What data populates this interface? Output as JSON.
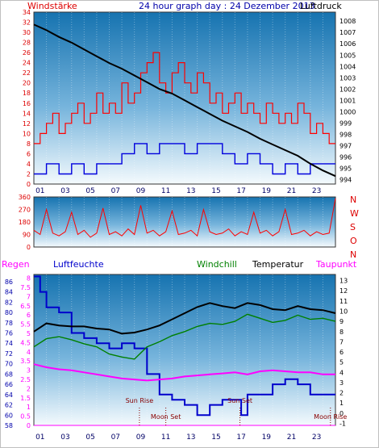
{
  "colors": {
    "plot_top": "#1673b0",
    "plot_mid": "#76b4dc",
    "plot_bottom": "#f4fafd",
    "wind": "#ff0000",
    "gust": "#0000dd",
    "pressure": "#000000",
    "direction": "#ff0000",
    "regen": "#ff00ff",
    "luftfeuchte": "#0000cc",
    "windchill": "#008000",
    "temperatur": "#000000",
    "taupunkt": "#ff00ff",
    "axis_red": "#dd0000",
    "axis_blue": "#0000aa",
    "sun_moon": "#880000"
  },
  "header": {
    "title": "24 hour graph day : 24 Dezember 2013",
    "left_label": "Windstärke",
    "right_label": "Luftdruck"
  },
  "x_ticks": [
    "01",
    "03",
    "05",
    "07",
    "09",
    "11",
    "13",
    "15",
    "17",
    "19",
    "21",
    "23"
  ],
  "chart_data": [
    {
      "type": "line",
      "panel": "wind-pressure",
      "x_range_hours": [
        0,
        24
      ],
      "left_axis": {
        "label": "Windstärke",
        "ticks": [
          0,
          2,
          4,
          6,
          8,
          10,
          12,
          14,
          16,
          18,
          20,
          22,
          24,
          26,
          28,
          30,
          32,
          34
        ],
        "ylim": [
          0,
          34
        ]
      },
      "right_axis": {
        "label": "Luftdruck",
        "ticks": [
          994,
          995,
          996,
          997,
          998,
          999,
          1000,
          1001,
          1002,
          1003,
          1004,
          1005,
          1006,
          1007,
          1008
        ],
        "ylim": [
          993.6,
          1008.8
        ]
      },
      "series": [
        {
          "name": "Windstärke",
          "axis": "left",
          "style": "step",
          "x": [
            0,
            0.5,
            1,
            1.5,
            2,
            2.5,
            3,
            3.5,
            4,
            4.5,
            5,
            5.5,
            6,
            6.5,
            7,
            7.5,
            8,
            8.5,
            9,
            9.5,
            10,
            10.5,
            11,
            11.5,
            12,
            12.5,
            13,
            13.5,
            14,
            14.5,
            15,
            15.5,
            16,
            16.5,
            17,
            17.5,
            18,
            18.5,
            19,
            19.5,
            20,
            20.5,
            21,
            21.5,
            22,
            22.5,
            23,
            23.5,
            24
          ],
          "values": [
            8,
            10,
            12,
            14,
            10,
            12,
            14,
            16,
            12,
            14,
            18,
            14,
            16,
            14,
            20,
            16,
            18,
            22,
            24,
            26,
            20,
            18,
            22,
            24,
            20,
            18,
            22,
            20,
            16,
            18,
            14,
            16,
            18,
            14,
            16,
            14,
            12,
            16,
            14,
            12,
            14,
            12,
            16,
            14,
            10,
            12,
            10,
            8,
            8
          ]
        },
        {
          "name": "Böen",
          "axis": "left",
          "style": "step",
          "x": [
            0,
            1,
            2,
            3,
            4,
            5,
            6,
            7,
            8,
            9,
            10,
            11,
            12,
            13,
            14,
            15,
            16,
            17,
            18,
            19,
            20,
            21,
            22,
            23,
            24
          ],
          "values": [
            2,
            4,
            2,
            4,
            2,
            4,
            4,
            6,
            8,
            6,
            8,
            8,
            6,
            8,
            8,
            6,
            4,
            6,
            4,
            2,
            4,
            2,
            4,
            4,
            4
          ]
        },
        {
          "name": "Luftdruck",
          "axis": "right",
          "style": "line",
          "x": [
            0,
            1,
            2,
            3,
            4,
            5,
            6,
            7,
            8,
            9,
            10,
            11,
            12,
            13,
            14,
            15,
            16,
            17,
            18,
            19,
            20,
            21,
            22,
            23,
            24
          ],
          "values": [
            1007.7,
            1007.2,
            1006.6,
            1006.1,
            1005.5,
            1004.9,
            1004.3,
            1003.8,
            1003.2,
            1002.6,
            1002.0,
            1001.6,
            1001.0,
            1000.4,
            999.8,
            999.2,
            998.7,
            998.2,
            997.6,
            997.1,
            996.6,
            996.1,
            995.4,
            994.8,
            994.3
          ]
        }
      ]
    },
    {
      "type": "line",
      "panel": "wind-direction",
      "x_range_hours": [
        0,
        24
      ],
      "left_axis": {
        "ticks": [
          0,
          90,
          180,
          270,
          360
        ],
        "ylim": [
          0,
          360
        ]
      },
      "right_labels": [
        "N",
        "W",
        "S",
        "O",
        "N"
      ],
      "series": [
        {
          "name": "Windrichtung",
          "x": [
            0,
            0.5,
            1,
            1.5,
            2,
            2.5,
            3,
            3.5,
            4,
            4.5,
            5,
            5.5,
            6,
            6.5,
            7,
            7.5,
            8,
            8.5,
            9,
            9.5,
            10,
            10.5,
            11,
            11.5,
            12,
            12.5,
            13,
            13.5,
            14,
            14.5,
            15,
            15.5,
            16,
            16.5,
            17,
            17.5,
            18,
            18.5,
            19,
            19.5,
            20,
            20.5,
            21,
            21.5,
            22,
            22.5,
            23,
            23.5,
            24
          ],
          "values": [
            120,
            90,
            270,
            100,
            80,
            110,
            250,
            90,
            120,
            70,
            100,
            280,
            90,
            110,
            80,
            130,
            90,
            300,
            100,
            120,
            80,
            110,
            260,
            90,
            100,
            120,
            80,
            270,
            110,
            90,
            100,
            130,
            80,
            110,
            90,
            250,
            100,
            120,
            80,
            110,
            270,
            90,
            100,
            120,
            80,
            110,
            90,
            100,
            350
          ]
        }
      ]
    },
    {
      "type": "line",
      "panel": "humidity-temperature",
      "x_range_hours": [
        0,
        24
      ],
      "outer_left_axis": {
        "label": "Luftfeuchte",
        "ticks": [
          58,
          60,
          62,
          64,
          66,
          68,
          70,
          72,
          74,
          76,
          78,
          80,
          82,
          84,
          86
        ],
        "ylim": [
          58,
          87.4
        ]
      },
      "inner_left_axis": {
        "label": "Regen",
        "ticks": [
          0,
          0.5,
          1,
          1.5,
          2,
          2.5,
          3,
          3.5,
          4,
          4.5,
          5,
          5.5,
          6,
          6.5,
          7,
          7.5,
          8
        ],
        "ylim": [
          0,
          8.2
        ]
      },
      "right_axis": {
        "label": "Temperatur",
        "ticks": [
          -1,
          0,
          1,
          2,
          3,
          4,
          5,
          6,
          7,
          8,
          9,
          10,
          11,
          12,
          13
        ],
        "ylim": [
          -1.2,
          13.6
        ]
      },
      "legend": [
        "Regen",
        "Luftfeuchte",
        "Windchill",
        "Temperatur",
        "Taupunkt"
      ],
      "series": [
        {
          "name": "Luftfeuchte",
          "axis": "outer_left",
          "style": "step",
          "x": [
            0,
            0.5,
            1,
            2,
            3,
            4,
            5,
            6,
            7,
            8,
            9,
            10,
            11,
            12,
            13,
            14,
            15,
            16,
            16.5,
            17,
            18,
            19,
            20,
            21,
            22,
            23,
            24
          ],
          "values": [
            87,
            84,
            81,
            80,
            76,
            75,
            74,
            73,
            74,
            73,
            68,
            64,
            63,
            62,
            60,
            62,
            63,
            63,
            60,
            64,
            64,
            66,
            67,
            66,
            64,
            64,
            64
          ]
        },
        {
          "name": "Windchill",
          "axis": "right",
          "style": "line",
          "x": [
            0,
            1,
            2,
            3,
            4,
            5,
            6,
            7,
            8,
            9,
            10,
            11,
            12,
            13,
            14,
            15,
            16,
            17,
            18,
            19,
            20,
            21,
            22,
            23,
            24
          ],
          "values": [
            6.5,
            7.3,
            7.5,
            7.2,
            6.8,
            6.5,
            5.8,
            5.5,
            5.3,
            6.5,
            7.0,
            7.6,
            8.0,
            8.5,
            8.8,
            8.7,
            9.0,
            9.7,
            9.3,
            8.9,
            9.1,
            9.6,
            9.2,
            9.3,
            9.0
          ]
        },
        {
          "name": "Temperatur",
          "axis": "right",
          "style": "line",
          "x": [
            0,
            1,
            2,
            3,
            4,
            5,
            6,
            7,
            8,
            9,
            10,
            11,
            12,
            13,
            14,
            15,
            16,
            17,
            18,
            19,
            20,
            21,
            22,
            23,
            24
          ],
          "values": [
            8.0,
            8.8,
            8.6,
            8.5,
            8.5,
            8.3,
            8.2,
            7.8,
            7.9,
            8.2,
            8.6,
            9.2,
            9.8,
            10.4,
            10.8,
            10.5,
            10.3,
            10.8,
            10.6,
            10.2,
            10.1,
            10.5,
            10.2,
            10.1,
            9.8
          ]
        },
        {
          "name": "Taupunkt",
          "axis": "right",
          "style": "line",
          "x": [
            0,
            1,
            2,
            3,
            4,
            5,
            6,
            7,
            8,
            9,
            10,
            11,
            12,
            13,
            14,
            15,
            16,
            17,
            18,
            19,
            20,
            21,
            22,
            23,
            24
          ],
          "values": [
            4.8,
            4.5,
            4.3,
            4.2,
            4.0,
            3.8,
            3.6,
            3.4,
            3.3,
            3.2,
            3.3,
            3.4,
            3.6,
            3.7,
            3.8,
            3.9,
            4.0,
            3.8,
            4.1,
            4.2,
            4.1,
            4.0,
            4.0,
            3.8,
            3.8
          ]
        },
        {
          "name": "Regen",
          "axis": "inner_left",
          "style": "step",
          "x": [
            0,
            24
          ],
          "values": [
            0,
            0
          ]
        }
      ],
      "events": [
        {
          "label": "Sun Rise",
          "hour": 8.4
        },
        {
          "label": "Moon Set",
          "hour": 10.5
        },
        {
          "label": "Sun Set",
          "hour": 16.4
        },
        {
          "label": "Moon Rise",
          "hour": 23.6
        }
      ]
    }
  ]
}
